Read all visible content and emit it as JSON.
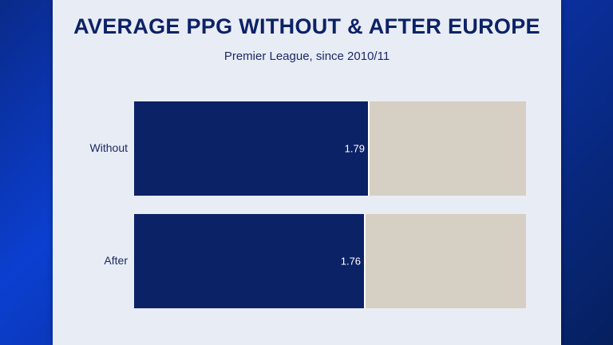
{
  "chart_data": {
    "type": "bar",
    "orientation": "horizontal",
    "title": "AVERAGE PPG WITHOUT & AFTER EUROPE",
    "subtitle": "Premier League, since 2010/11",
    "categories": [
      "Without",
      "After"
    ],
    "values": [
      1.79,
      1.76
    ],
    "value_labels": [
      "1.79",
      "1.76"
    ],
    "xlim": [
      0,
      3
    ],
    "grid": false,
    "colors": {
      "bar": "#0c2266",
      "track": "#d6cfc4",
      "background": "#e8ecf5"
    }
  }
}
